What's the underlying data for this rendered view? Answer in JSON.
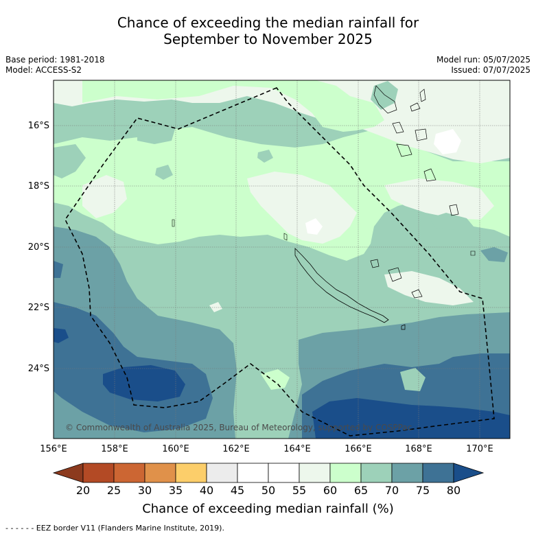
{
  "title_line1": "Chance of exceeding the median rainfall for",
  "title_line2": "September to November 2025",
  "meta_left": {
    "base_period": "Base period: 1981-2018",
    "model": "Model: ACCESS-S2"
  },
  "meta_right": {
    "model_run": "Model run: 05/07/2025",
    "issued": "Issued: 07/07/2025"
  },
  "lat_labels": [
    "16°S",
    "18°S",
    "20°S",
    "22°S",
    "24°S"
  ],
  "lon_labels": [
    "156°E",
    "158°E",
    "160°E",
    "162°E",
    "164°E",
    "166°E",
    "168°E",
    "170°E"
  ],
  "copyright": "© Commonwealth of Australia 2025, Bureau of Meteorology, supported by COSPPac",
  "colorbar": {
    "ticks": [
      "20",
      "25",
      "30",
      "35",
      "40",
      "45",
      "50",
      "55",
      "60",
      "65",
      "70",
      "75",
      "80"
    ],
    "colors": {
      "below20": "#8c3a1e",
      "c20_25": "#b34a25",
      "c25_30": "#cc6633",
      "c30_35": "#e0914a",
      "c35_40": "#fcce6a",
      "c40_45": "#ececec",
      "c45_50": "#ffffff",
      "c50_55": "#ffffff",
      "c55_60": "#edf7ec",
      "c60_65": "#ccffcc",
      "c65_70": "#9dd1b9",
      "c70_75": "#6ca1a6",
      "c75_80": "#3e7295",
      "above80": "#1a4e8a"
    },
    "title": "Chance of exceeding median rainfall (%)"
  },
  "footer": "- -  - -  - - EEZ border V11 (Flanders Marine Institute, 2019)."
}
